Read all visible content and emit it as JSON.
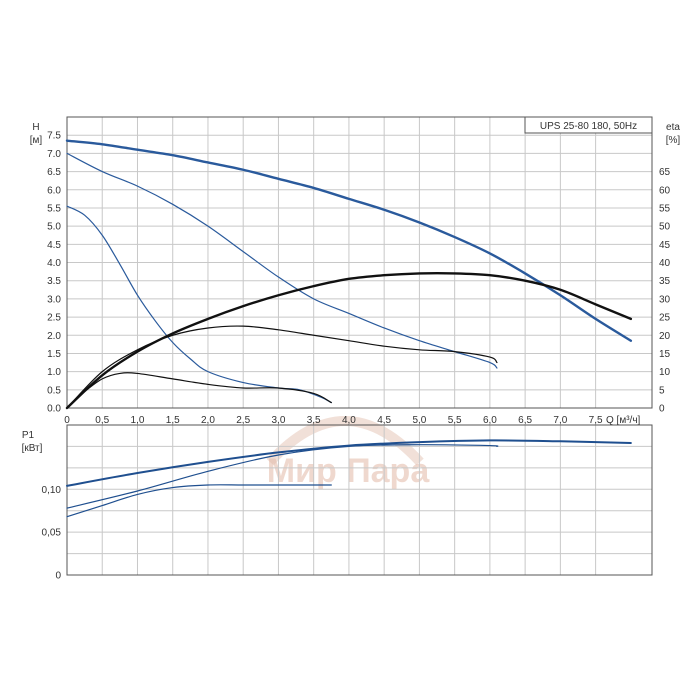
{
  "chart_data": {
    "type": "line",
    "title": "UPS 25-80 180, 50Hz",
    "colors": {
      "head": "#2a5a9c",
      "efficiency": "#111111",
      "power": "#1f4f8f",
      "watermark": "#d8a690"
    },
    "watermark": "Мир Пара",
    "x_axis": {
      "label": "Q [м³/ч]",
      "range": [
        0,
        8.3
      ],
      "ticks": [
        "0",
        "0,5",
        "1,0",
        "1,5",
        "2,0",
        "2,5",
        "3,0",
        "3,5",
        "4,0",
        "4,5",
        "5,0",
        "5,5",
        "6,0",
        "6,5",
        "7,0",
        "7,5"
      ]
    },
    "head_axis": {
      "label": "H",
      "unit": "[м]",
      "range": [
        0,
        8.0
      ],
      "ticks": [
        "0.0",
        "0.5",
        "1.0",
        "1.5",
        "2.0",
        "2.5",
        "3.0",
        "3.5",
        "4.0",
        "4.5",
        "5.0",
        "5.5",
        "6.0",
        "6.5",
        "7.0",
        "7.5"
      ]
    },
    "eta_axis": {
      "label": "eta",
      "unit": "[%]",
      "range": [
        0,
        80
      ],
      "ticks": [
        "0",
        "5",
        "10",
        "15",
        "20",
        "25",
        "30",
        "35",
        "40",
        "45",
        "50",
        "55",
        "60",
        "65"
      ]
    },
    "power_axis": {
      "label": "P1",
      "unit": "[кВт]",
      "range": [
        0,
        0.175
      ],
      "ticks": [
        "0",
        "0,05",
        "0,10"
      ]
    },
    "head_series": [
      {
        "x": [
          0,
          0.5,
          1,
          1.5,
          2,
          2.5,
          3,
          3.5,
          4,
          4.5,
          5,
          5.5,
          6,
          6.5,
          7,
          7.5,
          8
        ],
        "y": [
          7.35,
          7.25,
          7.1,
          6.95,
          6.75,
          6.55,
          6.3,
          6.05,
          5.75,
          5.45,
          5.1,
          4.7,
          4.25,
          3.7,
          3.1,
          2.45,
          1.85
        ]
      },
      {
        "x": [
          0,
          0.5,
          1,
          1.5,
          2,
          2.5,
          3,
          3.5,
          4,
          4.5,
          5,
          5.5,
          6,
          6.1
        ],
        "y": [
          7.0,
          6.5,
          6.1,
          5.6,
          5.0,
          4.3,
          3.6,
          3.0,
          2.6,
          2.2,
          1.85,
          1.55,
          1.25,
          1.1
        ]
      },
      {
        "x": [
          0,
          0.25,
          0.5,
          0.75,
          1,
          1.25,
          1.5,
          1.75,
          2,
          2.5,
          3,
          3.3,
          3.6,
          3.75
        ],
        "y": [
          5.55,
          5.3,
          4.75,
          3.95,
          3.1,
          2.4,
          1.8,
          1.35,
          1.0,
          0.7,
          0.55,
          0.5,
          0.3,
          0.15
        ]
      }
    ],
    "eta_series": [
      {
        "x": [
          0,
          0.5,
          1,
          1.5,
          2,
          2.5,
          3,
          3.5,
          4,
          4.5,
          5,
          5.5,
          6,
          6.5,
          7,
          7.5,
          8
        ],
        "y": [
          0,
          9,
          15.5,
          20.5,
          24.5,
          28,
          31,
          33.5,
          35.5,
          36.5,
          37,
          37,
          36.5,
          35,
          32.5,
          28.5,
          24.5
        ]
      },
      {
        "x": [
          0,
          0.5,
          1,
          1.5,
          2,
          2.5,
          3,
          3.5,
          4,
          4.5,
          5,
          5.5,
          6,
          6.1
        ],
        "y": [
          0,
          10,
          16,
          20,
          22,
          22.5,
          21.5,
          20,
          18.5,
          17,
          16,
          15.5,
          14,
          12.5
        ]
      },
      {
        "x": [
          0,
          0.25,
          0.5,
          0.75,
          1,
          1.5,
          2,
          2.5,
          3,
          3.5,
          3.75
        ],
        "y": [
          0,
          4.5,
          8,
          9.5,
          9.5,
          8,
          6.5,
          5.5,
          5.5,
          4,
          1.5
        ]
      }
    ],
    "power_series": [
      {
        "x": [
          0,
          1,
          2,
          3,
          4,
          5,
          6,
          7,
          8
        ],
        "y": [
          0.104,
          0.119,
          0.132,
          0.143,
          0.151,
          0.155,
          0.157,
          0.156,
          0.154
        ]
      },
      {
        "x": [
          0,
          1,
          2,
          3,
          4,
          5,
          6,
          6.1
        ],
        "y": [
          0.078,
          0.098,
          0.121,
          0.14,
          0.15,
          0.152,
          0.151,
          0.15
        ]
      },
      {
        "x": [
          0,
          0.5,
          1,
          1.5,
          2,
          2.5,
          3,
          3.5,
          3.75
        ],
        "y": [
          0.068,
          0.081,
          0.094,
          0.102,
          0.105,
          0.105,
          0.105,
          0.105,
          0.105
        ]
      }
    ]
  }
}
